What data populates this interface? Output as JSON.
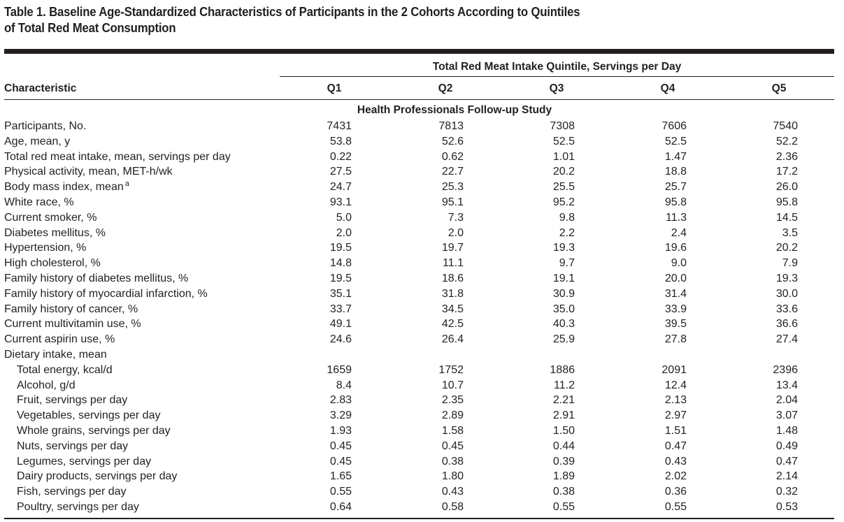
{
  "table": {
    "title_line1": "Table 1. Baseline Age-Standardized Characteristics of Participants in the 2 Cohorts According to Quintiles",
    "title_line2": "of Total Red Meat Consumption",
    "spanner": "Total Red Meat Intake Quintile, Servings per Day",
    "characteristic_header": "Characteristic",
    "quintiles": [
      "Q1",
      "Q2",
      "Q3",
      "Q4",
      "Q5"
    ],
    "section": "Health Professionals Follow-up Study",
    "rows": [
      {
        "label": "Participants, No.",
        "values": [
          "7431",
          "7813",
          "7308",
          "7606",
          "7540"
        ]
      },
      {
        "label": "Age, mean, y",
        "values": [
          "53.8",
          "52.6",
          "52.5",
          "52.5",
          "52.2"
        ]
      },
      {
        "label": "Total red meat intake, mean, servings per day",
        "values": [
          "0.22",
          "0.62",
          "1.01",
          "1.47",
          "2.36"
        ]
      },
      {
        "label": "Physical activity, mean, MET-h/wk",
        "values": [
          "27.5",
          "22.7",
          "20.2",
          "18.8",
          "17.2"
        ]
      },
      {
        "label": "Body mass index, mean",
        "sup": "a",
        "values": [
          "24.7",
          "25.3",
          "25.5",
          "25.7",
          "26.0"
        ]
      },
      {
        "label": "White race, %",
        "values": [
          "93.1",
          "95.1",
          "95.2",
          "95.8",
          "95.8"
        ]
      },
      {
        "label": "Current smoker, %",
        "values": [
          "5.0",
          "7.3",
          "9.8",
          "11.3",
          "14.5"
        ]
      },
      {
        "label": "Diabetes mellitus, %",
        "values": [
          "2.0",
          "2.0",
          "2.2",
          "2.4",
          "3.5"
        ]
      },
      {
        "label": "Hypertension, %",
        "values": [
          "19.5",
          "19.7",
          "19.3",
          "19.6",
          "20.2"
        ]
      },
      {
        "label": "High cholesterol, %",
        "values": [
          "14.8",
          "11.1",
          "9.7",
          "9.0",
          "7.9"
        ]
      },
      {
        "label": "Family history of diabetes mellitus, %",
        "values": [
          "19.5",
          "18.6",
          "19.1",
          "20.0",
          "19.3"
        ]
      },
      {
        "label": "Family history of myocardial infarction, %",
        "values": [
          "35.1",
          "31.8",
          "30.9",
          "31.4",
          "30.0"
        ]
      },
      {
        "label": "Family history of cancer, %",
        "values": [
          "33.7",
          "34.5",
          "35.0",
          "33.9",
          "33.6"
        ]
      },
      {
        "label": "Current multivitamin use, %",
        "values": [
          "49.1",
          "42.5",
          "40.3",
          "39.5",
          "36.6"
        ]
      },
      {
        "label": "Current aspirin use, %",
        "values": [
          "24.6",
          "26.4",
          "25.9",
          "27.8",
          "27.4"
        ]
      },
      {
        "label": "Dietary intake, mean",
        "values": []
      },
      {
        "label": "Total energy, kcal/d",
        "sub": true,
        "values": [
          "1659",
          "1752",
          "1886",
          "2091",
          "2396"
        ]
      },
      {
        "label": "Alcohol, g/d",
        "sub": true,
        "values": [
          "8.4",
          "10.7",
          "11.2",
          "12.4",
          "13.4"
        ]
      },
      {
        "label": "Fruit, servings per day",
        "sub": true,
        "values": [
          "2.83",
          "2.35",
          "2.21",
          "2.13",
          "2.04"
        ]
      },
      {
        "label": "Vegetables, servings per day",
        "sub": true,
        "values": [
          "3.29",
          "2.89",
          "2.91",
          "2.97",
          "3.07"
        ]
      },
      {
        "label": "Whole grains, servings per day",
        "sub": true,
        "values": [
          "1.93",
          "1.58",
          "1.50",
          "1.51",
          "1.48"
        ]
      },
      {
        "label": "Nuts, servings per day",
        "sub": true,
        "values": [
          "0.45",
          "0.45",
          "0.44",
          "0.47",
          "0.49"
        ]
      },
      {
        "label": "Legumes, servings per day",
        "sub": true,
        "values": [
          "0.45",
          "0.38",
          "0.39",
          "0.43",
          "0.47"
        ]
      },
      {
        "label": "Dairy products, servings per day",
        "sub": true,
        "values": [
          "1.65",
          "1.80",
          "1.89",
          "2.02",
          "2.14"
        ]
      },
      {
        "label": "Fish, servings per day",
        "sub": true,
        "values": [
          "0.55",
          "0.43",
          "0.38",
          "0.36",
          "0.32"
        ]
      },
      {
        "label": "Poultry, servings per day",
        "sub": true,
        "values": [
          "0.64",
          "0.58",
          "0.55",
          "0.55",
          "0.53"
        ]
      }
    ]
  }
}
